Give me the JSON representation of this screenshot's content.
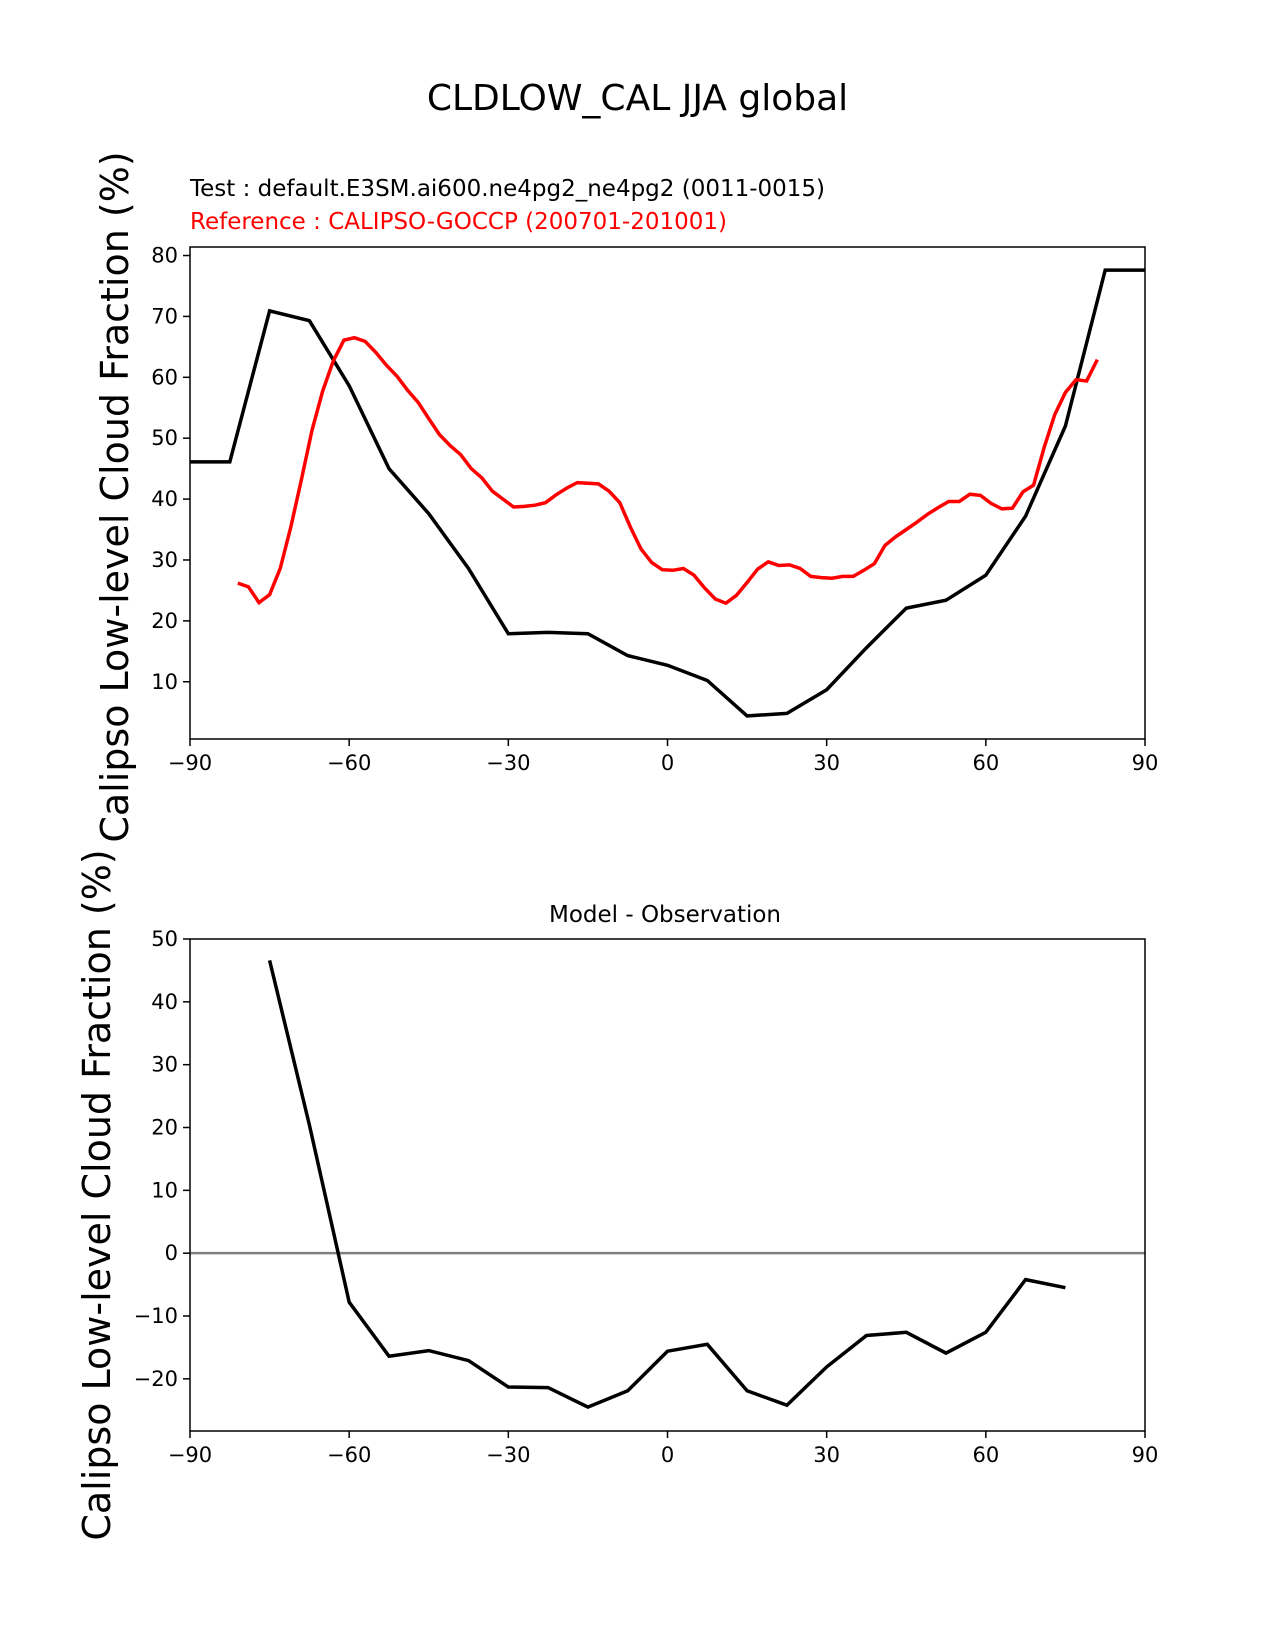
{
  "figure": {
    "title": "CLDLOW_CAL JJA global"
  },
  "chart_data": [
    {
      "type": "line",
      "test_label": "Test : default.E3SM.ai600.ne4pg2_ne4pg2 (0011-0015)",
      "reference_label": "Reference : CALIPSO-GOCCP (200701-201001)",
      "ylabel": "Calipso Low-level Cloud Fraction (%)",
      "xlabel": "",
      "xlim": [
        -90,
        90
      ],
      "ylim": [
        0.6,
        81.4
      ],
      "xticks": [
        -90,
        -60,
        -30,
        0,
        30,
        60,
        90
      ],
      "xtick_labels": [
        "−90",
        "−60",
        "−30",
        "0",
        "30",
        "60",
        "90"
      ],
      "yticks": [
        10,
        20,
        30,
        40,
        50,
        60,
        70,
        80
      ],
      "ytick_labels": [
        "10",
        "20",
        "30",
        "40",
        "50",
        "60",
        "70",
        "80"
      ],
      "series": [
        {
          "name": "test",
          "color": "#000000",
          "x": [
            -90,
            -82.5,
            -75,
            -67.5,
            -60,
            -52.5,
            -45,
            -37.5,
            -30,
            -22.5,
            -15,
            -7.5,
            0,
            7.5,
            15,
            22.5,
            30,
            37.5,
            45,
            52.5,
            60,
            67.5,
            75,
            82.5,
            90
          ],
          "y": [
            46.1,
            46.1,
            70.9,
            69.3,
            58.6,
            45.0,
            37.6,
            28.6,
            17.9,
            18.1,
            17.9,
            14.3,
            12.7,
            10.2,
            4.4,
            4.8,
            8.7,
            15.6,
            22.1,
            23.4,
            27.5,
            37.2,
            52.0,
            77.6,
            77.6
          ]
        },
        {
          "name": "reference",
          "color": "#ff0000",
          "x": [
            -81,
            -79,
            -77,
            -75,
            -73,
            -71,
            -69,
            -67,
            -65,
            -63,
            -61,
            -59,
            -57,
            -55,
            -53,
            -51,
            -49,
            -47,
            -45,
            -43,
            -41,
            -39,
            -37,
            -35,
            -33,
            -31,
            -29,
            -27,
            -25,
            -23,
            -21,
            -19,
            -17,
            -15,
            -13,
            -11,
            -9,
            -7,
            -5,
            -3,
            -1,
            1,
            3,
            5,
            7,
            9,
            11,
            13,
            15,
            17,
            19,
            21,
            23,
            25,
            27,
            29,
            31,
            33,
            35,
            37,
            39,
            41,
            43,
            45,
            47,
            49,
            51,
            53,
            55,
            57,
            59,
            61,
            63,
            65,
            67,
            69,
            71,
            73,
            75,
            77,
            79,
            81
          ],
          "y": [
            26.2,
            25.6,
            23.0,
            24.3,
            28.6,
            35.4,
            43.2,
            51.3,
            57.7,
            62.7,
            66.1,
            66.5,
            65.9,
            64.1,
            62.0,
            60.2,
            57.9,
            55.9,
            53.2,
            50.6,
            48.8,
            47.3,
            45.0,
            43.5,
            41.3,
            40.0,
            38.7,
            38.8,
            39.0,
            39.4,
            40.7,
            41.8,
            42.7,
            42.6,
            42.5,
            41.3,
            39.4,
            35.4,
            31.8,
            29.6,
            28.4,
            28.3,
            28.6,
            27.5,
            25.4,
            23.6,
            22.9,
            24.2,
            26.3,
            28.5,
            29.7,
            29.1,
            29.2,
            28.6,
            27.3,
            27.1,
            27.0,
            27.3,
            27.3,
            28.3,
            29.4,
            32.4,
            33.8,
            35.0,
            36.2,
            37.5,
            38.6,
            39.6,
            39.6,
            40.8,
            40.6,
            39.3,
            38.4,
            38.5,
            41.2,
            42.3,
            48.5,
            53.9,
            57.5,
            59.6,
            59.4,
            62.9
          ]
        }
      ]
    },
    {
      "type": "line",
      "title": "Model - Observation",
      "ylabel": "Calipso Low-level Cloud Fraction (%)",
      "xlabel": "",
      "xlim": [
        -90,
        90
      ],
      "ylim": [
        -28.3,
        50
      ],
      "xticks": [
        -90,
        -60,
        -30,
        0,
        30,
        60,
        90
      ],
      "xtick_labels": [
        "−90",
        "−60",
        "−30",
        "0",
        "30",
        "60",
        "90"
      ],
      "yticks": [
        -20,
        -10,
        0,
        10,
        20,
        30,
        40,
        50
      ],
      "ytick_labels": [
        "−20",
        "−10",
        "0",
        "10",
        "20",
        "30",
        "40",
        "50"
      ],
      "zero_line_color": "#808080",
      "series": [
        {
          "name": "difference",
          "color": "#000000",
          "x": [
            -75,
            -67.5,
            -60,
            -52.5,
            -45,
            -37.5,
            -30,
            -22.5,
            -15,
            -7.5,
            0,
            7.5,
            15,
            22.5,
            30,
            37.5,
            45,
            52.5,
            60,
            67.5,
            75
          ],
          "y": [
            46.6,
            20.4,
            -7.8,
            -16.4,
            -15.5,
            -17.1,
            -21.3,
            -21.4,
            -24.5,
            -21.9,
            -15.6,
            -14.5,
            -21.9,
            -24.2,
            -18.1,
            -13.1,
            -12.6,
            -15.9,
            -12.6,
            -4.2,
            -5.5
          ]
        }
      ]
    }
  ]
}
